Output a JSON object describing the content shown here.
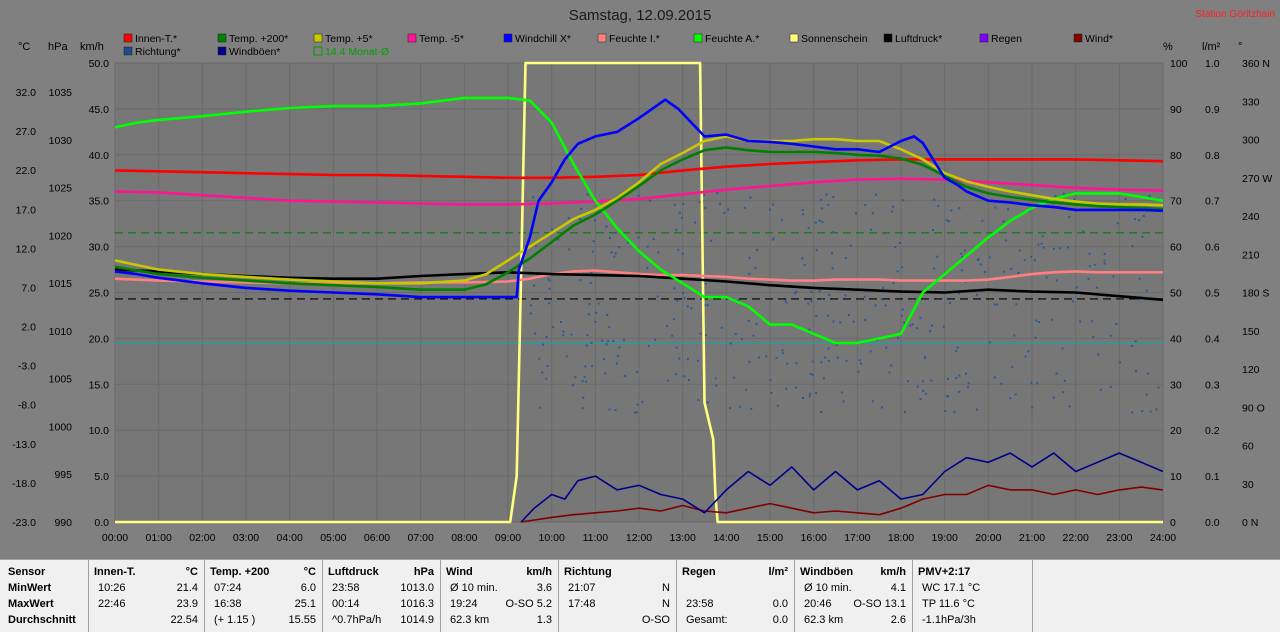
{
  "title": "Samstag, 12.09.2015",
  "station": "Station Göritzhain",
  "axis_units": {
    "temp": "°C",
    "pressure": "hPa",
    "speed": "km/h",
    "percent": "%",
    "rain": "l/m²",
    "degree": "°"
  },
  "legend": [
    {
      "label": "Innen-T.*",
      "color": "#ff0000"
    },
    {
      "label": "Temp. +200*",
      "color": "#008000"
    },
    {
      "label": "Temp. +5*",
      "color": "#c8c800"
    },
    {
      "label": "Temp. -5*",
      "color": "#ff1493"
    },
    {
      "label": "Windchill X*",
      "color": "#0000ff"
    },
    {
      "label": "Feuchte I.*",
      "color": "#ff8080"
    },
    {
      "label": "Feuchte A.*",
      "color": "#00ff00"
    },
    {
      "label": "Sonnenschein",
      "color": "#ffff80"
    },
    {
      "label": "Luftdruck*",
      "color": "#000000"
    },
    {
      "label": "Regen",
      "color": "#8000ff"
    },
    {
      "label": "Wind*",
      "color": "#800000"
    },
    {
      "label": "Richtung*",
      "color": "#1f4e8c"
    },
    {
      "label": "Windböen*",
      "color": "#00008b"
    },
    {
      "label": "14.4 Monat-Ø",
      "color": "#00a000"
    }
  ],
  "chart_data": {
    "type": "line",
    "x_ticks": [
      "00:00",
      "01:00",
      "02:00",
      "03:00",
      "04:00",
      "05:00",
      "06:00",
      "07:00",
      "08:00",
      "09:00",
      "10:00",
      "11:00",
      "12:00",
      "13:00",
      "14:00",
      "15:00",
      "16:00",
      "17:00",
      "18:00",
      "19:00",
      "20:00",
      "21:00",
      "22:00",
      "23:00",
      "24:00"
    ],
    "axes": {
      "temp": [
        "32.0",
        "27.0",
        "22.0",
        "17.0",
        "12.0",
        "7.0",
        "2.0",
        "-3.0",
        "-8.0",
        "-13.0",
        "-18.0",
        "-23.0"
      ],
      "pressure": [
        "1035",
        "1030",
        "1025",
        "1020",
        "1015",
        "1010",
        "1005",
        "1000",
        "995",
        "990"
      ],
      "speed": [
        "50.0",
        "45.0",
        "40.0",
        "35.0",
        "30.0",
        "25.0",
        "20.0",
        "15.0",
        "10.0",
        "5.0",
        "0.0"
      ],
      "percent": [
        "100",
        "90",
        "80",
        "70",
        "60",
        "50",
        "40",
        "30",
        "20",
        "10",
        "0"
      ],
      "rain": [
        "1.0",
        "0.9",
        "0.8",
        "0.7",
        "0.6",
        "0.5",
        "0.4",
        "0.3",
        "0.2",
        "0.1",
        "0.0"
      ],
      "degree": [
        "360 N",
        "330",
        "300",
        "270 W",
        "240",
        "210",
        "180 S",
        "150",
        "120",
        "90 O",
        "60",
        "30",
        "0 N"
      ]
    },
    "speed_range": [
      0,
      50
    ],
    "series": [
      {
        "name": "Innen-T.*",
        "axis": "speed",
        "color": "#ff0000",
        "x": [
          0,
          1,
          2,
          3,
          4,
          5,
          6,
          7,
          8,
          9,
          10,
          11,
          12,
          13,
          14,
          15,
          16,
          17,
          18,
          19,
          20,
          21,
          22,
          23,
          24
        ],
        "y": [
          38.3,
          38.2,
          38.1,
          38.0,
          37.9,
          37.8,
          37.8,
          37.7,
          37.6,
          37.5,
          37.5,
          37.6,
          37.8,
          38.3,
          38.7,
          39.0,
          39.2,
          39.4,
          39.5,
          39.5,
          39.5,
          39.5,
          39.5,
          39.4,
          39.3
        ]
      },
      {
        "name": "Temp. -5*",
        "axis": "speed",
        "color": "#ff1493",
        "x": [
          0,
          1,
          2,
          3,
          4,
          5,
          6,
          7,
          8,
          9,
          10,
          11,
          12,
          13,
          14,
          15,
          16,
          17,
          18,
          19,
          20,
          21,
          22,
          23,
          24
        ],
        "y": [
          36.0,
          35.9,
          35.6,
          35.3,
          35.0,
          34.9,
          34.8,
          34.7,
          34.6,
          34.6,
          34.7,
          34.9,
          35.2,
          35.7,
          36.2,
          36.6,
          37.0,
          37.3,
          37.4,
          37.3,
          37.0,
          36.7,
          36.4,
          36.2,
          36.1
        ]
      },
      {
        "name": "Feuchte A.*",
        "axis": "speed",
        "color": "#00ff00",
        "x": [
          0,
          0.5,
          1,
          2,
          3,
          4,
          5,
          6,
          7,
          8,
          9,
          9.5,
          10,
          10.5,
          11,
          11.5,
          12,
          12.5,
          13,
          13.5,
          14,
          14.5,
          15,
          15.5,
          16,
          16.5,
          17,
          17.5,
          18,
          18.5,
          19,
          19.5,
          20,
          20.5,
          21,
          21.5,
          22,
          22.5,
          23,
          23.5,
          24
        ],
        "y": [
          43.0,
          43.5,
          43.8,
          44.2,
          44.7,
          45.1,
          45.3,
          45.3,
          45.6,
          46.2,
          46.2,
          45.9,
          43.5,
          39.0,
          35.0,
          32.0,
          29.5,
          27.5,
          26.0,
          24.5,
          24.5,
          23.5,
          21.5,
          21.5,
          20.5,
          19.5,
          19.5,
          20.0,
          20.5,
          25.0,
          27.0,
          29.0,
          31.0,
          32.8,
          34.2,
          35.2,
          35.8,
          35.8,
          35.8,
          35.4,
          35.0
        ]
      },
      {
        "name": "Temp. +5*",
        "axis": "speed",
        "color": "#c8c800",
        "x": [
          0,
          1,
          2,
          3,
          4,
          5,
          6,
          7,
          8,
          8.5,
          9,
          9.5,
          10,
          10.5,
          11,
          11.5,
          12,
          12.5,
          13,
          13.5,
          14,
          14.5,
          15,
          15.5,
          16,
          16.5,
          17,
          17.5,
          18,
          18.5,
          19,
          19.5,
          20,
          20.5,
          21,
          21.5,
          22,
          22.5,
          23,
          23.5,
          24
        ],
        "y": [
          28.5,
          27.5,
          27.0,
          26.7,
          26.4,
          26.2,
          26.0,
          26.0,
          26.3,
          27.0,
          28.5,
          30.0,
          31.5,
          33.0,
          34.0,
          35.3,
          37.0,
          39.0,
          40.2,
          41.5,
          42.0,
          41.5,
          41.5,
          41.5,
          41.7,
          41.7,
          41.5,
          41.5,
          40.6,
          39.5,
          38.0,
          37.1,
          36.5,
          36.0,
          35.6,
          35.2,
          34.9,
          34.7,
          34.6,
          34.6,
          34.5
        ]
      },
      {
        "name": "Temp. +200*",
        "axis": "speed",
        "color": "#008000",
        "x": [
          0,
          1,
          2,
          3,
          4,
          5,
          6,
          7,
          8,
          8.5,
          9,
          9.5,
          10,
          10.5,
          11,
          11.5,
          12,
          12.5,
          13,
          13.5,
          14,
          14.5,
          15,
          15.5,
          16,
          16.5,
          17,
          17.5,
          18,
          18.5,
          19,
          19.5,
          20,
          20.5,
          21,
          21.5,
          22,
          22.5,
          23,
          23.5,
          24
        ],
        "y": [
          27.8,
          27.0,
          26.6,
          26.3,
          26.0,
          25.8,
          25.6,
          25.3,
          25.3,
          25.9,
          27.2,
          28.7,
          30.5,
          32.3,
          33.5,
          35.0,
          36.6,
          38.3,
          39.5,
          40.5,
          40.8,
          40.5,
          40.3,
          40.3,
          40.3,
          40.2,
          40.0,
          39.9,
          39.6,
          38.9,
          37.7,
          36.5,
          35.8,
          35.4,
          35.1,
          34.8,
          34.6,
          34.4,
          34.3,
          34.2,
          34.1
        ]
      },
      {
        "name": "Windchill X*",
        "axis": "speed",
        "color": "#0000ff",
        "x": [
          0,
          0.5,
          1,
          2,
          3,
          4,
          5,
          6,
          7,
          8,
          9,
          9.2,
          9.25,
          9.5,
          9.7,
          10,
          10.3,
          10.6,
          11,
          11.5,
          12,
          12.3,
          12.6,
          12.9,
          13,
          13.5,
          14,
          14.5,
          15,
          15.5,
          16,
          16.5,
          17,
          17.5,
          18,
          18.3,
          18.5,
          18.8,
          19,
          19.3,
          19.5,
          20,
          20.5,
          21,
          21.5,
          22,
          22.5,
          23,
          23.5,
          24
        ],
        "y": [
          27.3,
          27.0,
          26.6,
          26.0,
          25.5,
          25.2,
          25.0,
          24.8,
          24.5,
          24.5,
          24.5,
          24.5,
          27.5,
          31.0,
          35.0,
          37.0,
          39.5,
          41.2,
          42.0,
          42.5,
          44.0,
          45.0,
          46.0,
          45.0,
          44.5,
          42.0,
          42.2,
          41.5,
          41.4,
          41.2,
          40.9,
          40.6,
          40.6,
          40.3,
          41.5,
          42.0,
          41.3,
          39.0,
          37.5,
          36.7,
          36.0,
          35.0,
          34.8,
          34.5,
          34.3,
          34.0,
          34.0,
          34.0,
          34.0,
          33.9
        ]
      },
      {
        "name": "Feuchte I.*",
        "axis": "speed",
        "color": "#ff8080",
        "x": [
          0,
          1,
          2,
          3,
          4,
          5,
          6,
          7,
          8,
          9,
          9.5,
          10,
          10.5,
          11,
          11.5,
          12,
          12.5,
          13,
          13.5,
          14,
          14.5,
          15,
          15.5,
          16,
          16.5,
          17,
          17.5,
          18,
          18.5,
          19,
          19.5,
          20,
          20.5,
          21,
          21.5,
          22,
          22.5,
          23,
          23.5,
          24
        ],
        "y": [
          26.5,
          26.3,
          26.2,
          26.1,
          26.0,
          26.0,
          26.0,
          26.1,
          26.1,
          26.2,
          26.5,
          27.0,
          27.3,
          27.4,
          27.2,
          27.0,
          26.9,
          26.9,
          26.8,
          26.7,
          26.5,
          26.4,
          26.3,
          26.3,
          26.4,
          26.4,
          26.4,
          26.3,
          26.3,
          26.3,
          26.3,
          26.4,
          26.7,
          27.0,
          27.2,
          27.3,
          27.2,
          27.2,
          27.2,
          27.2
        ]
      },
      {
        "name": "Luftdruck*",
        "axis": "speed",
        "color": "#000000",
        "x": [
          0,
          1,
          2,
          3,
          4,
          5,
          6,
          7,
          8,
          9,
          10,
          11,
          12,
          13,
          14,
          15,
          16,
          17,
          18,
          19,
          20,
          21,
          22,
          23,
          24
        ],
        "y": [
          27.5,
          27.3,
          27.0,
          26.8,
          26.6,
          26.5,
          26.5,
          26.8,
          27.0,
          27.2,
          27.0,
          26.9,
          26.8,
          26.5,
          26.2,
          25.8,
          25.5,
          25.3,
          25.1,
          25.0,
          25.3,
          25.1,
          25.0,
          24.6,
          24.2
        ]
      },
      {
        "name": "Sonnenschein",
        "axis": "speed",
        "color": "#ffff80",
        "x": [
          0,
          9.05,
          9.2,
          9.3,
          9.4,
          9.5,
          13.3,
          13.4,
          13.5,
          13.6,
          13.7,
          13.75,
          13.8,
          24
        ],
        "y": [
          0,
          0,
          5,
          27,
          50,
          50,
          50,
          50,
          13,
          11,
          9,
          3,
          0,
          0
        ]
      },
      {
        "name": "Windböen*",
        "axis": "speed",
        "color": "#00008b",
        "x": [
          9.3,
          9.6,
          10,
          10.3,
          10.6,
          11,
          11.5,
          12,
          12.5,
          13,
          13.5,
          14,
          14.5,
          15,
          15.5,
          16,
          16.5,
          17,
          17.5,
          18,
          18.5,
          19,
          19.5,
          20,
          20.5,
          21,
          21.5,
          22,
          22.5,
          23,
          23.5,
          24
        ],
        "y": [
          0,
          1.5,
          3.0,
          2.5,
          4.5,
          5.0,
          3.5,
          4.0,
          3.0,
          2.5,
          1.0,
          3.5,
          5.5,
          4.0,
          6.0,
          3.5,
          5.5,
          3.5,
          4.5,
          2.5,
          3.0,
          5.5,
          7.0,
          6.5,
          7.5,
          6.0,
          7.5,
          5.5,
          6.5,
          7.5,
          6.5,
          5.5
        ]
      },
      {
        "name": "Wind*",
        "axis": "speed",
        "color": "#800000",
        "x": [
          9.3,
          10,
          10.5,
          11,
          11.5,
          12,
          12.5,
          13,
          13.5,
          14,
          14.5,
          15,
          15.5,
          16,
          16.5,
          17,
          17.5,
          18,
          18.5,
          19,
          19.5,
          20,
          20.5,
          21,
          21.5,
          22,
          22.5,
          23,
          23.5,
          24
        ],
        "y": [
          0,
          0.5,
          0.8,
          1.0,
          1.2,
          1.5,
          1.2,
          1.8,
          1.2,
          1.0,
          1.5,
          2.0,
          1.5,
          1.0,
          1.2,
          1.0,
          0.8,
          1.5,
          2.5,
          3.0,
          3.0,
          4.0,
          3.5,
          3.5,
          3.0,
          3.5,
          3.0,
          3.5,
          3.8,
          3.5
        ]
      }
    ],
    "reference_lines": [
      {
        "speed_value": 31.5,
        "color": "#008000",
        "dash": true
      },
      {
        "speed_value": 24.3,
        "color": "#000000",
        "dash": true
      },
      {
        "speed_value": 19.5,
        "color": "#20a0a0",
        "dash": false
      }
    ]
  },
  "stats": {
    "rowlabels": [
      "Sensor",
      "MinWert",
      "MaxWert",
      "Durchschnitt"
    ],
    "innen": {
      "h": "Innen-T.",
      "u": "°C",
      "rows": [
        [
          "10:26",
          "21.4"
        ],
        [
          "22:46",
          "23.9"
        ],
        [
          "",
          "22.54"
        ]
      ]
    },
    "temp": {
      "h": "Temp. +200",
      "u": "°C",
      "rows": [
        [
          "07:24",
          "6.0"
        ],
        [
          "16:38",
          "25.1"
        ],
        [
          "(+ 1.15 )",
          "15.55"
        ]
      ]
    },
    "luft": {
      "h": "Luftdruck",
      "u": "hPa",
      "rows": [
        [
          "23:58",
          "1013.0"
        ],
        [
          "00:14",
          "1016.3"
        ],
        [
          "^0.7hPa/h",
          "1014.9"
        ]
      ]
    },
    "wind": {
      "h": "Wind",
      "u": "km/h",
      "rows": [
        [
          "Ø 10 min.",
          "3.6"
        ],
        [
          "19:24",
          "O-SO 5.2"
        ],
        [
          "62.3 km",
          "1.3"
        ]
      ]
    },
    "richtung": {
      "h": "Richtung",
      "u": "",
      "rows": [
        [
          "21:07",
          "N"
        ],
        [
          "17:48",
          "N"
        ],
        [
          "",
          "O-SO"
        ]
      ]
    },
    "regen": {
      "h": "Regen",
      "u": "l/m²",
      "rows": [
        [
          "",
          ""
        ],
        [
          "23:58",
          "0.0"
        ],
        [
          "Gesamt:",
          "0.0"
        ]
      ]
    },
    "boen": {
      "h": "Windböen",
      "u": "km/h",
      "rows": [
        [
          "Ø 10 min.",
          "4.1"
        ],
        [
          "20:46",
          "O-SO 13.1"
        ],
        [
          "62.3 km",
          "2.6"
        ]
      ]
    },
    "pmv": {
      "h": "PMV+2:17",
      "u": "",
      "rows": [
        [
          "WC 17.1 °C",
          ""
        ],
        [
          "TP 11.6 °C",
          ""
        ],
        [
          "-1.1hPa/3h",
          ""
        ]
      ]
    }
  }
}
